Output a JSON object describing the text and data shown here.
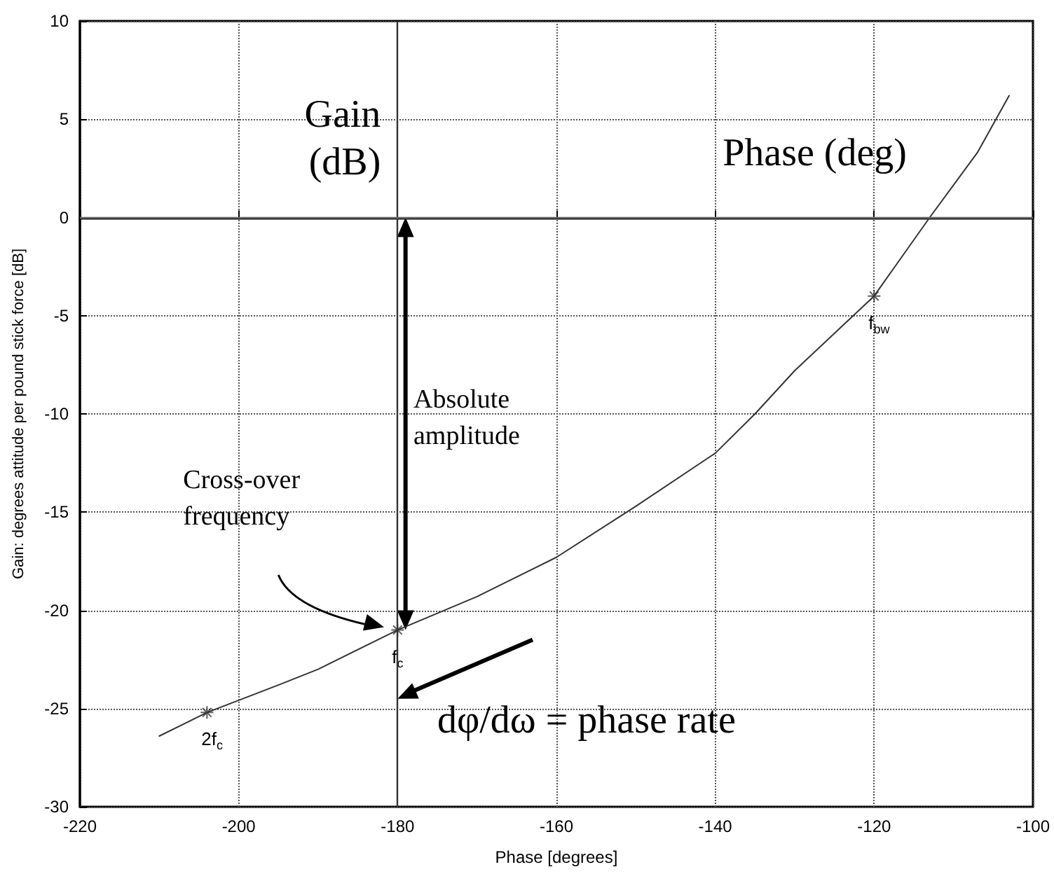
{
  "chart_data": {
    "type": "line",
    "xlabel": "Phase [degrees]",
    "ylabel": "Gain: degrees attitude per pound stick force [dB]",
    "xlim": [
      -220,
      -100
    ],
    "xticks": [
      -220,
      -200,
      -180,
      -160,
      -140,
      -120,
      -100
    ],
    "ylim": [
      -30,
      10
    ],
    "yticks": [
      -30,
      -25,
      -20,
      -15,
      -10,
      -5,
      0,
      5,
      10
    ],
    "grid": true,
    "series": [
      {
        "color": "#333333",
        "marker": "none",
        "x": [
          -210,
          -204,
          -195,
          -190,
          -180,
          -170,
          -160,
          -150,
          -140,
          -135,
          -130,
          -120,
          -113,
          -107,
          -103
        ],
        "values": [
          -26.4,
          -25.2,
          -23.8,
          -23.0,
          -21.0,
          -19.3,
          -17.3,
          -14.7,
          -12.0,
          -10.0,
          -7.8,
          -4.0,
          0,
          3.3,
          6.2
        ]
      },
      {
        "type": "scatter",
        "color": "#333333",
        "marker": "cross",
        "x": [
          -204,
          -180,
          -120
        ],
        "values": [
          -25.2,
          -21.0,
          -4.0
        ]
      }
    ],
    "ref_lines": [
      {
        "axis": "x",
        "value": -180,
        "label": "Gain\n(dB)",
        "color": "#333333",
        "line_style": "solid"
      },
      {
        "axis": "y",
        "value": 0,
        "label": "Phase (deg)",
        "color": "#666666",
        "line_style": "solid"
      }
    ],
    "annotations": [
      "Absolute\namplitude",
      "Cross-over\nfrequency",
      {
        "text": "f$_{c}$",
        "x": -180,
        "y": -21
      },
      {
        "text": "2f$_{c}$",
        "x": -204,
        "y": -25.2
      },
      {
        "text": "f$_{bw}$",
        "x": -120,
        "y": -4
      },
      "dφ/dω = phase rate"
    ]
  }
}
